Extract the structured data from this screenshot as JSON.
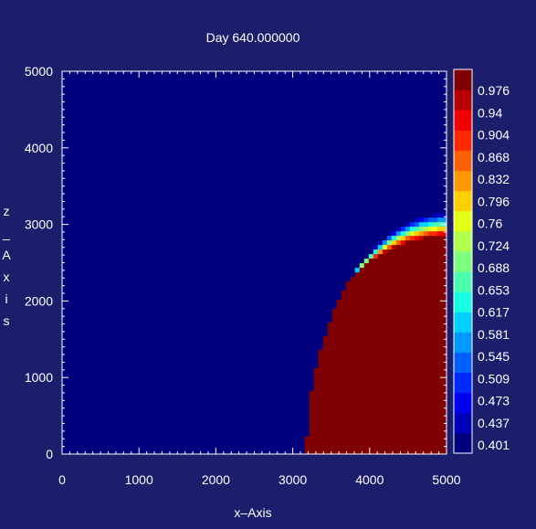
{
  "chart_data": {
    "type": "heatmap",
    "title": "Day 640.000000",
    "xlabel": "x–Axis",
    "ylabel": "z–Axis",
    "xlim": [
      0,
      5000
    ],
    "ylim": [
      0,
      5000
    ],
    "x_ticks": [
      "0",
      "1000",
      "2000",
      "3000",
      "4000",
      "5000"
    ],
    "y_ticks": [
      "0",
      "1000",
      "2000",
      "3000",
      "4000",
      "5000"
    ],
    "grid": false,
    "colorbar": {
      "position": "right",
      "range": [
        0.383,
        1.0
      ],
      "levels": [
        "0.401",
        "0.437",
        "0.473",
        "0.509",
        "0.545",
        "0.581",
        "0.617",
        "0.653",
        "0.688",
        "0.724",
        "0.76",
        "0.796",
        "0.832",
        "0.868",
        "0.904",
        "0.94",
        "0.976"
      ],
      "colors": [
        "#00007f",
        "#0000b8",
        "#0000f0",
        "#0028ff",
        "#0060ff",
        "#0098ff",
        "#00d0ff",
        "#18ffe4",
        "#4cffae",
        "#7eff7e",
        "#b0ff4c",
        "#e4ff18",
        "#ffd000",
        "#ff9800",
        "#ff6000",
        "#ff2800",
        "#f00000",
        "#b80000",
        "#7f0000"
      ]
    },
    "field": {
      "description_values": "front of a plume spreading from corner (5000,0)",
      "background_value": 0.39,
      "front_outer_value": 0.4,
      "interior_value": 0.99,
      "core_value": 1.0,
      "front_radius_x": [
        1820,
        2120
      ],
      "front_radius_z": [
        3150,
        2850
      ],
      "center": [
        5000,
        0
      ]
    }
  }
}
